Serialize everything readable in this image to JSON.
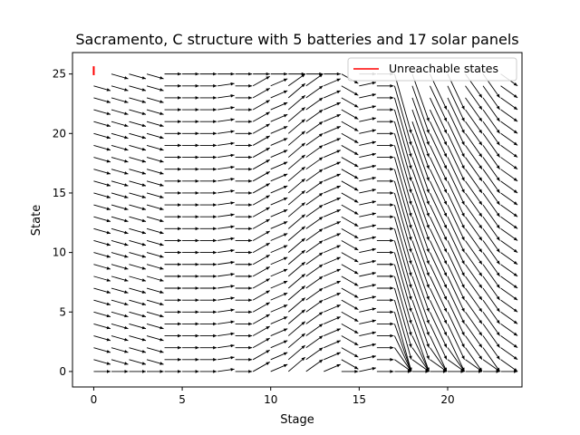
{
  "chart_data": {
    "type": "quiver",
    "title": "Sacramento, C structure with 5 batteries and 17 solar panels",
    "xlabel": "Stage",
    "ylabel": "State",
    "xlim": [
      -1.2,
      24.2
    ],
    "ylim": [
      -1.3,
      26.8
    ],
    "xticks": [
      0,
      5,
      10,
      15,
      20
    ],
    "yticks": [
      0,
      5,
      10,
      15,
      20,
      25
    ],
    "grid": false,
    "legend": {
      "placement": "top-right",
      "entries": [
        {
          "label": "Unreachable states",
          "color": "#ff0000"
        }
      ]
    },
    "unreachable_states": [
      {
        "stage": 0,
        "state": 25
      }
    ],
    "stages": [
      0,
      1,
      2,
      3,
      4,
      5,
      6,
      7,
      8,
      9,
      10,
      11,
      12,
      13,
      14,
      15,
      16,
      17,
      18,
      19,
      20,
      21,
      22,
      23,
      24
    ],
    "states_range": [
      0,
      25
    ],
    "policy": {
      "description": "arrow from (stage, state) to (stage+1, next_state); next_state = state + delta",
      "default_delta": 0,
      "delta_by_stage": {
        "0": -0.4,
        "1": -0.4,
        "2": -0.4,
        "3": -0.4,
        "4": 0,
        "5": 0,
        "6": 0,
        "7": 0.2,
        "8": 0,
        "9": 0.8,
        "10": 0.6,
        "11": 1.2,
        "12": 1.0,
        "13": 0.6,
        "14": -0.8,
        "15": 0.3,
        "16": 0,
        "17": -5,
        "18": -4,
        "19": -3,
        "20": -3,
        "21": -2,
        "22": -2,
        "23": -1
      }
    },
    "arrow_color": "#000000",
    "unreachable_color": "#ff0000"
  }
}
